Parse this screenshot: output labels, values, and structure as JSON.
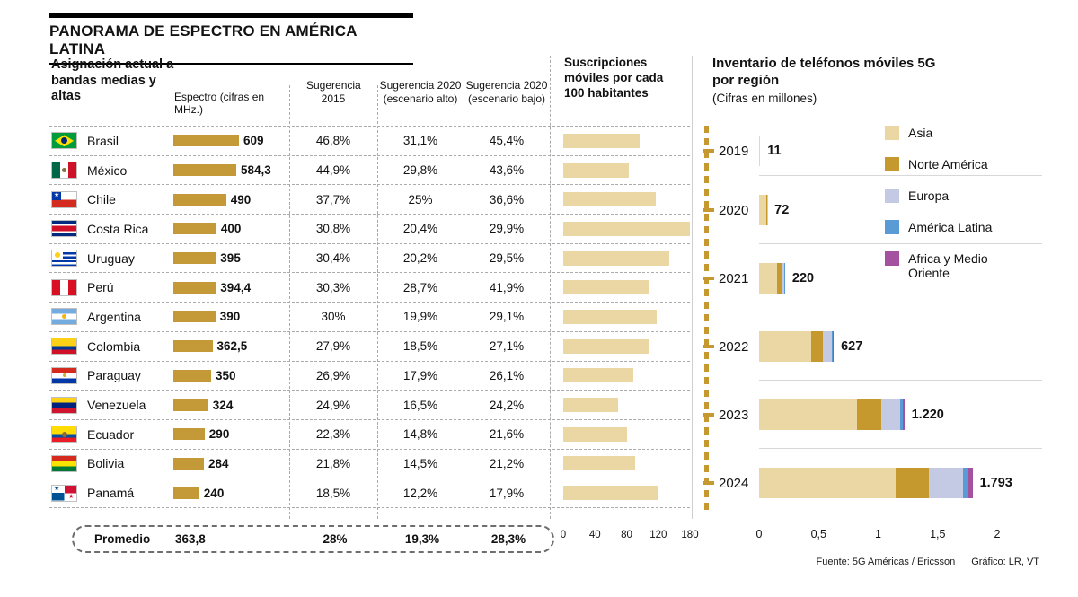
{
  "header": {
    "title": "PANORAMA DE ESPECTRO EN AMÉRICA LATINA"
  },
  "footer": {
    "fuente": "Fuente: 5G Américas / Ericsson",
    "grafico": "Gráfico: LR, VT"
  },
  "colors": {
    "gold_bar": "#C49A38",
    "light_tan": "#EAD7A4",
    "gold_divider": "#C5992F"
  },
  "chart_data": [
    {
      "type": "table",
      "title": "Asignación actual a bandas medias y altas",
      "columns": [
        "Espectro (cifras en MHz.)",
        "Sugerencia 2015",
        "Sugerencia 2020 (escenario alto)",
        "Sugerencia 2020 (escenario bajo)"
      ],
      "bar_max": 609,
      "rows": [
        {
          "country": "Brasil",
          "flag": "brasil",
          "espectro": 609,
          "espectro_label": "609",
          "s2015": "46,8%",
          "s2020_alto": "31,1%",
          "s2020_bajo": "45,4%"
        },
        {
          "country": "México",
          "flag": "mexico",
          "espectro": 584.3,
          "espectro_label": "584,3",
          "s2015": "44,9%",
          "s2020_alto": "29,8%",
          "s2020_bajo": "43,6%"
        },
        {
          "country": "Chile",
          "flag": "chile",
          "espectro": 490,
          "espectro_label": "490",
          "s2015": "37,7%",
          "s2020_alto": "25%",
          "s2020_bajo": "36,6%"
        },
        {
          "country": "Costa Rica",
          "flag": "costarica",
          "espectro": 400,
          "espectro_label": "400",
          "s2015": "30,8%",
          "s2020_alto": "20,4%",
          "s2020_bajo": "29,9%"
        },
        {
          "country": "Uruguay",
          "flag": "uruguay",
          "espectro": 395,
          "espectro_label": "395",
          "s2015": "30,4%",
          "s2020_alto": "20,2%",
          "s2020_bajo": "29,5%"
        },
        {
          "country": "Perú",
          "flag": "peru",
          "espectro": 394.4,
          "espectro_label": "394,4",
          "s2015": "30,3%",
          "s2020_alto": "28,7%",
          "s2020_bajo": "41,9%"
        },
        {
          "country": "Argentina",
          "flag": "argentina",
          "espectro": 390,
          "espectro_label": "390",
          "s2015": "30%",
          "s2020_alto": "19,9%",
          "s2020_bajo": "29,1%"
        },
        {
          "country": "Colombia",
          "flag": "colombia",
          "espectro": 362.5,
          "espectro_label": "362,5",
          "s2015": "27,9%",
          "s2020_alto": "18,5%",
          "s2020_bajo": "27,1%"
        },
        {
          "country": "Paraguay",
          "flag": "paraguay",
          "espectro": 350,
          "espectro_label": "350",
          "s2015": "26,9%",
          "s2020_alto": "17,9%",
          "s2020_bajo": "26,1%"
        },
        {
          "country": "Venezuela",
          "flag": "venezuela",
          "espectro": 324,
          "espectro_label": "324",
          "s2015": "24,9%",
          "s2020_alto": "16,5%",
          "s2020_bajo": "24,2%"
        },
        {
          "country": "Ecuador",
          "flag": "ecuador",
          "espectro": 290,
          "espectro_label": "290",
          "s2015": "22,3%",
          "s2020_alto": "14,8%",
          "s2020_bajo": "21,6%"
        },
        {
          "country": "Bolivia",
          "flag": "bolivia",
          "espectro": 284,
          "espectro_label": "284",
          "s2015": "21,8%",
          "s2020_alto": "14,5%",
          "s2020_bajo": "21,2%"
        },
        {
          "country": "Panamá",
          "flag": "panama",
          "espectro": 240,
          "espectro_label": "240",
          "s2015": "18,5%",
          "s2020_alto": "12,2%",
          "s2020_bajo": "17,9%"
        }
      ],
      "promedio": {
        "label": "Promedio",
        "espectro": "363,8",
        "s2015": "28%",
        "s2020_alto": "19,3%",
        "s2020_bajo": "28,3%"
      }
    },
    {
      "type": "bar",
      "title": "Suscripciones móviles por cada 100 habitantes",
      "categories": [
        "Brasil",
        "México",
        "Chile",
        "Costa Rica",
        "Uruguay",
        "Perú",
        "Argentina",
        "Colombia",
        "Paraguay",
        "Venezuela",
        "Ecuador",
        "Bolivia",
        "Panamá"
      ],
      "values": [
        108,
        93,
        131,
        180,
        150,
        122,
        133,
        121,
        100,
        78,
        91,
        102,
        135
      ],
      "xlim": [
        0,
        180
      ],
      "ticks": [
        "0",
        "40",
        "80",
        "120",
        "180"
      ]
    },
    {
      "type": "stacked-bar",
      "title": "Inventario de teléfonos móviles 5G por región",
      "subtitle": "(Cifras en millones)",
      "categories": [
        "2019",
        "2020",
        "2021",
        "2022",
        "2023",
        "2024"
      ],
      "totals": [
        11,
        72,
        220,
        627,
        1220,
        1793
      ],
      "total_labels": [
        "11",
        "72",
        "220",
        "627",
        "1.220",
        "1.793"
      ],
      "series": [
        {
          "name": "Asia",
          "color": "#EAD7A4",
          "values": [
            10,
            60,
            150,
            440,
            820,
            1150
          ]
        },
        {
          "name": "Norte América",
          "color": "#C6992E",
          "values": [
            1,
            7,
            40,
            95,
            205,
            280
          ]
        },
        {
          "name": "Europa",
          "color": "#C5CAE4",
          "values": [
            0,
            3,
            25,
            80,
            160,
            280
          ]
        },
        {
          "name": "América Latina",
          "color": "#5B9BD5",
          "values": [
            0,
            1,
            3,
            7,
            20,
            45
          ]
        },
        {
          "name": "Africa y Medio Oriente",
          "color": "#A4529F",
          "values": [
            0,
            1,
            2,
            5,
            15,
            38
          ]
        }
      ],
      "xlim": [
        0,
        2000
      ],
      "ticks": [
        "0",
        "0,5",
        "1",
        "1,5",
        "2"
      ]
    }
  ]
}
